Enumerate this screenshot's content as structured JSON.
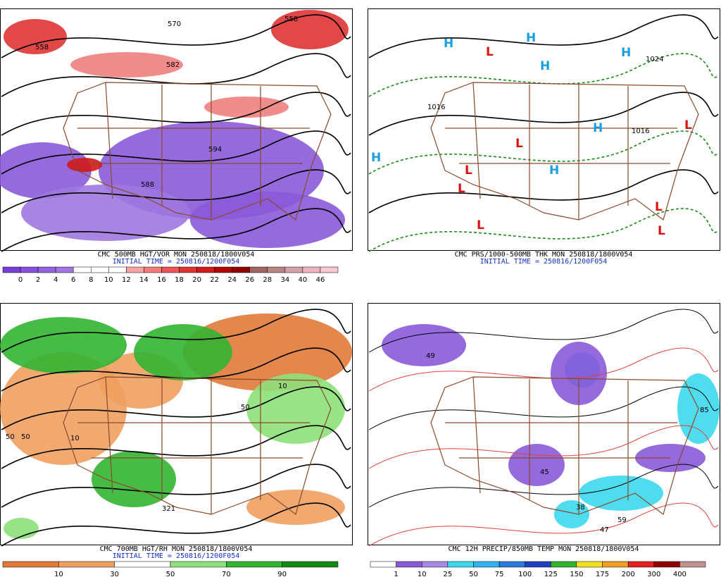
{
  "panels": [
    {
      "title": "CMC 500MB HGT/VOR MON 250818/1800V054",
      "subtitle": "INITIAL TIME = 250816/1200F054",
      "colorbar": {
        "colors": [
          "#7a3ed8",
          "#8850dc",
          "#9463de",
          "#a076e0",
          "#ffffff",
          "#ffffff",
          "#ffffff",
          "#f7a3a3",
          "#f07c7c",
          "#e85656",
          "#e03434",
          "#d01a1a",
          "#b40404",
          "#900000",
          "#a06464",
          "#b88484",
          "#d6a2aa",
          "#eeb4c2",
          "#f8c8d2"
        ],
        "labels": [
          0,
          2,
          4,
          6,
          8,
          10,
          12,
          14,
          16,
          18,
          20,
          22,
          24,
          26,
          28,
          34,
          40,
          46
        ]
      },
      "map_labels": [
        "570",
        "582",
        "558",
        "558",
        "594",
        "588"
      ]
    },
    {
      "title": "CMC PRS/1000-500MB THK MON 250818/1800V054",
      "subtitle": "INITIAL TIME = 250816/1200F054",
      "map_labels": [
        "H",
        "H",
        "H",
        "H",
        "H",
        "H",
        "H",
        "L",
        "L",
        "L",
        "L",
        "L",
        "L",
        "L",
        "L",
        "1016",
        "1016",
        "1024"
      ]
    },
    {
      "title": "CMC 700MB HGT/RH MON 250818/1800V054",
      "subtitle": "INITIAL TIME = 250816/1200F054",
      "colorbar": {
        "colors": [
          "#e07a3a",
          "#f0a060",
          "#ffffff",
          "#8ee07a",
          "#32b432",
          "#128a12"
        ],
        "labels": [
          10,
          30,
          50,
          70,
          90
        ]
      },
      "map_labels": [
        "50",
        "50",
        "10",
        "321",
        "10",
        "50"
      ]
    },
    {
      "title": "CMC 12H PRECIP/850MB TEMP MON 250818/1800V054",
      "colorbar": {
        "colors": [
          "#ffffff",
          "#8a5ad8",
          "#a88ae6",
          "#3cd8ec",
          "#30b4f0",
          "#2a7ae0",
          "#2040c0",
          "#30b430",
          "#f0e020",
          "#f0a020",
          "#e02020",
          "#900000",
          "#c09090"
        ],
        "labels": [
          1,
          10,
          25,
          50,
          75,
          100,
          125,
          150,
          175,
          200,
          300,
          400
        ]
      },
      "map_labels": [
        "49",
        "85",
        "47",
        "59",
        "38",
        "45"
      ]
    }
  ]
}
